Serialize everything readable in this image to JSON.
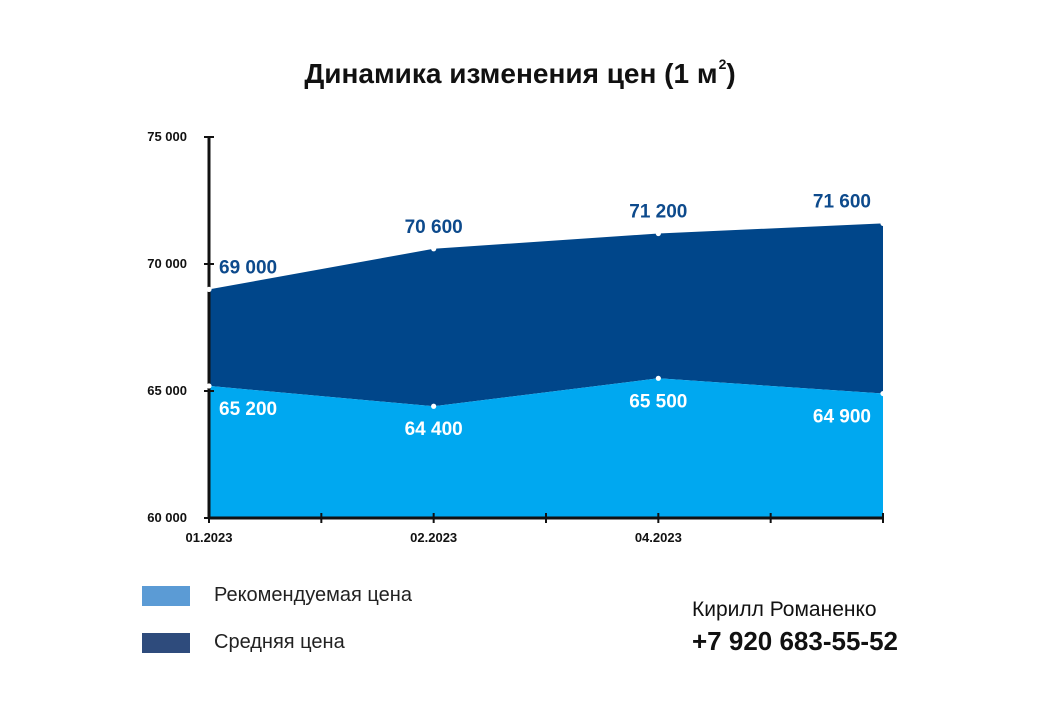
{
  "chart_data": {
    "type": "area",
    "title": "Динамика изменения цен (1 м",
    "title_superscript": "2",
    "title_suffix": ")",
    "ylim": [
      60000,
      75000
    ],
    "yticks": [
      {
        "value": 60000,
        "label": "60 000"
      },
      {
        "value": 65000,
        "label": "65 000"
      },
      {
        "value": 70000,
        "label": "70 000"
      },
      {
        "value": 75000,
        "label": "75 000"
      }
    ],
    "x": [
      "01.2023",
      "02.2023",
      "04.2023",
      ""
    ],
    "x_tick_count": 7,
    "grid": false,
    "legend_position": "bottom-left",
    "series": [
      {
        "name": "Рекомендуемая цена",
        "values": [
          65200,
          64400,
          65500,
          64900
        ],
        "labels": [
          "65 200",
          "64 400",
          "65 500",
          "64 900"
        ]
      },
      {
        "name": "Средняя цена",
        "values": [
          69000,
          70600,
          71200,
          71600
        ],
        "labels": [
          "69 000",
          "70 600",
          "71 200",
          "71 600"
        ]
      }
    ]
  },
  "colors": {
    "recommended_area": "#00a8f0",
    "average_area": "#00468a",
    "average_label": "#0d4a8c",
    "recommended_label": "#ffffff",
    "axis": "#111111",
    "legend_recommended": "#5b9bd5",
    "legend_average": "#2e4b7c"
  },
  "legend": {
    "recommended_label": "Рекомендуемая цена",
    "average_label": "Средняя цена"
  },
  "contact": {
    "name": "Кирилл Романенко",
    "phone": "+7 920 683-55-52"
  }
}
